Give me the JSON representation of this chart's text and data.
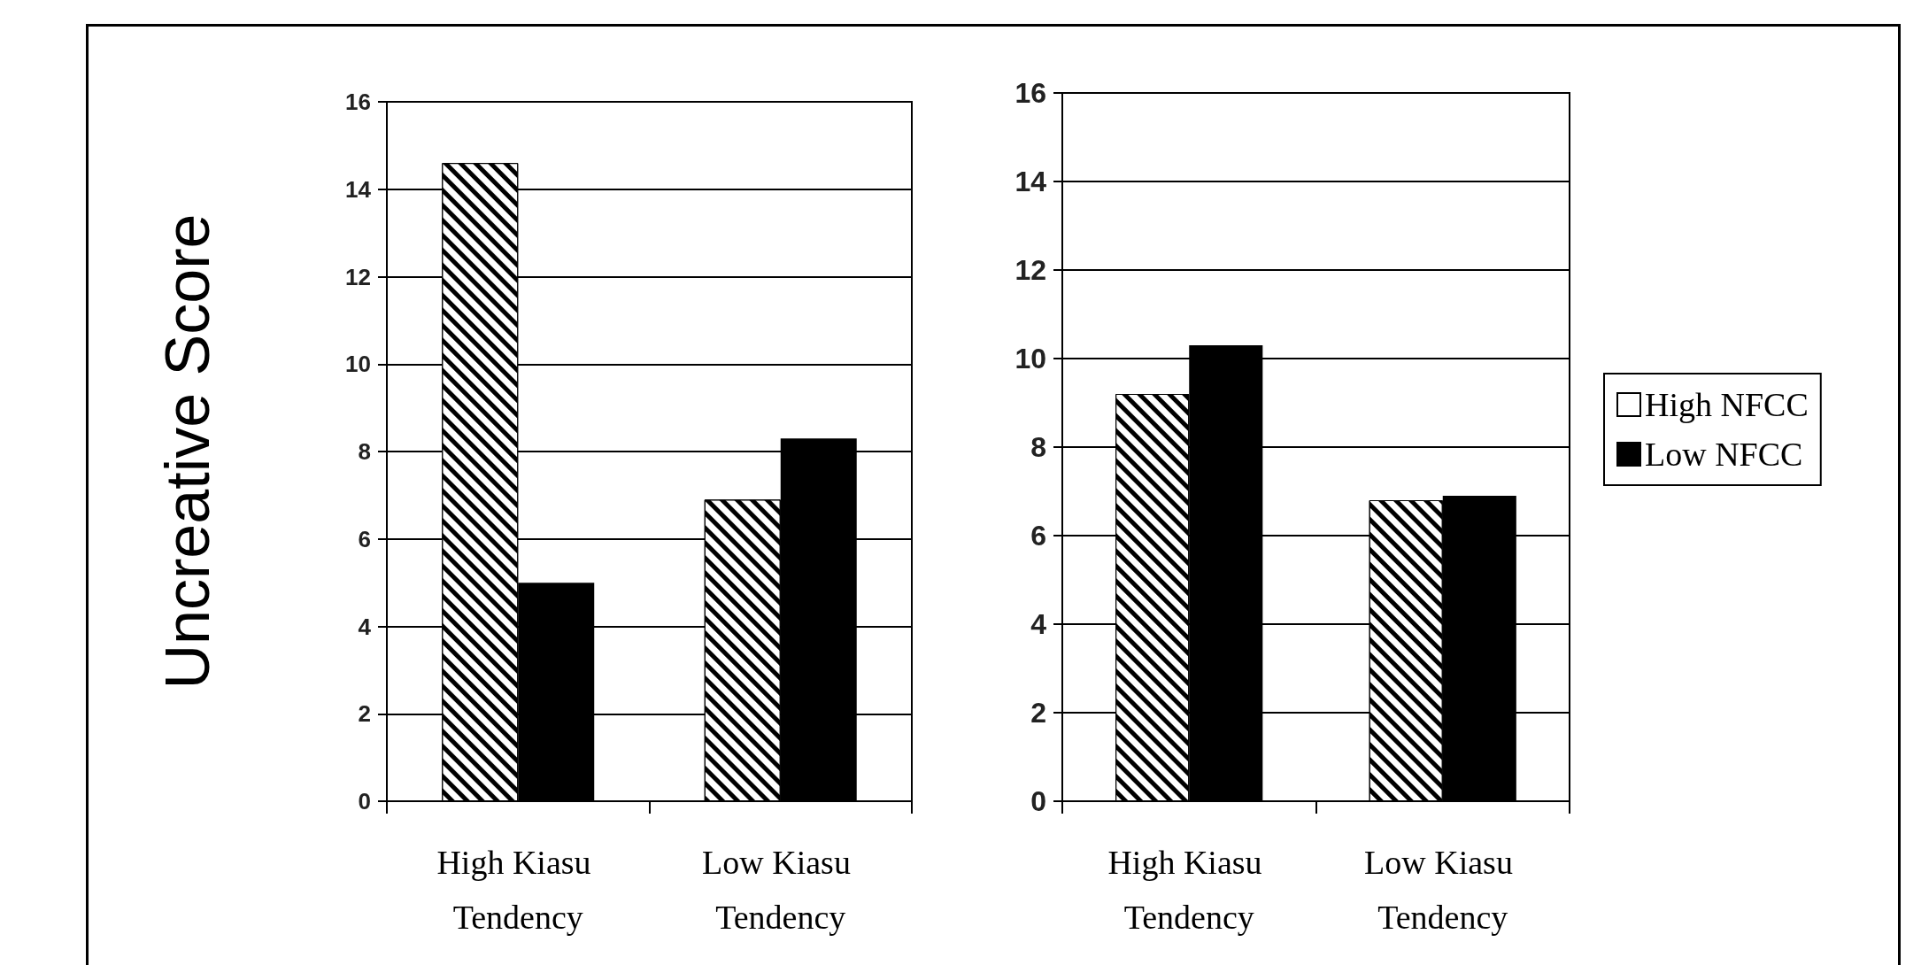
{
  "chart_data": [
    {
      "type": "bar",
      "ylabel": "Uncreative Score",
      "categories": [
        "High Kiasu Tendency",
        "Low Kiasu Tendency"
      ],
      "series": [
        {
          "color": "#ffffff",
          "values": [
            14.6,
            6.9
          ]
        },
        {
          "color": "#000000",
          "values": [
            5.0,
            8.3
          ]
        }
      ],
      "ylim": [
        0,
        16
      ],
      "yticks": [
        0,
        2,
        4,
        6,
        8,
        10,
        12,
        14,
        16
      ],
      "grid": "y",
      "legend": false
    },
    {
      "type": "bar",
      "categories": [
        "High Kiasu Tendency",
        "Low Kiasu Tendency"
      ],
      "series": [
        {
          "name": "High NFCC",
          "color": "#ffffff",
          "values": [
            9.2,
            6.8
          ]
        },
        {
          "name": "Low NFCC",
          "color": "#000000",
          "values": [
            10.3,
            6.9
          ]
        }
      ],
      "ylim": [
        0,
        16
      ],
      "yticks": [
        0,
        2,
        4,
        6,
        8,
        10,
        12,
        14,
        16
      ],
      "grid": "y",
      "legend": "right"
    }
  ]
}
